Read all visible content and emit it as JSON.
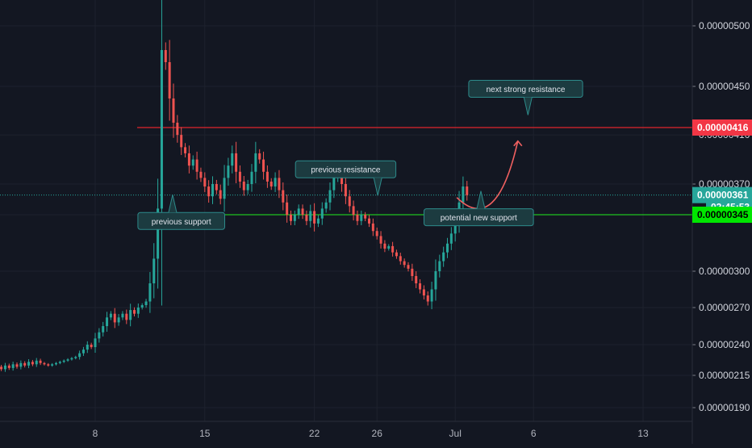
{
  "chart_data": {
    "type": "candlestick",
    "title": "",
    "xlabel": "",
    "ylabel": "",
    "x_ticks": [
      {
        "label": "8",
        "day": 8
      },
      {
        "label": "15",
        "day": 15
      },
      {
        "label": "22",
        "day": 22
      },
      {
        "label": "26",
        "day": 26
      },
      {
        "label": "Jul",
        "day": 31
      },
      {
        "label": "6",
        "day": 36
      },
      {
        "label": "13",
        "day": 43
      }
    ],
    "y_ticks": [
      "0.00000500",
      "0.00000450",
      "0.00000410",
      "0.00000370",
      "0.00000345",
      "0.00000300",
      "0.00000270",
      "0.00000240",
      "0.00000215",
      "0.00000190"
    ],
    "lines": [
      {
        "name": "next-strong-resistance",
        "price": 4.16e-06,
        "color": "#e0242c"
      },
      {
        "name": "support",
        "price": 3.45e-06,
        "color": "#1fc21f"
      },
      {
        "name": "current-price",
        "price": 3.61e-06,
        "color": "#26a69a"
      }
    ],
    "price_badges": [
      {
        "text": "0.00000416",
        "price": 4.16e-06,
        "color": "#f23645"
      },
      {
        "text": "0.00000361",
        "price": 3.61e-06,
        "color": "#26a69a"
      },
      {
        "text": "02:45:53",
        "price": 3.5e-06,
        "color": "#26a69a"
      },
      {
        "text": "0.00000345",
        "price": 3.45e-06,
        "color": "#00e600"
      }
    ],
    "annotations": [
      {
        "text": "previous support",
        "day": 13.5,
        "price": 3.4e-06
      },
      {
        "text": "previous resistance",
        "day": 24.0,
        "price": 3.82e-06
      },
      {
        "text": "potential new support",
        "day": 32.5,
        "price": 3.43e-06
      },
      {
        "text": "next strong resistance",
        "day": 35.5,
        "price": 4.48e-06
      }
    ],
    "projection": {
      "color": "#f06060",
      "points": [
        [
          31.1,
          3.59e-06
        ],
        [
          33.0,
          3.46e-06
        ],
        [
          35.0,
          4.05e-06
        ]
      ]
    },
    "series": [
      {
        "name": "candles",
        "x_start_day": 1.0,
        "x_step_day": 0.25,
        "close": [
          2.18e-06,
          2.2e-06,
          2.19e-06,
          2.22e-06,
          2.2e-06,
          2.23e-06,
          2.21e-06,
          2.24e-06,
          2.22e-06,
          2.25e-06,
          2.23e-06,
          2.26e-06,
          2.24e-06,
          2.27e-06,
          2.25e-06,
          2.24e-06,
          2.23e-06,
          2.24e-06,
          2.25e-06,
          2.26e-06,
          2.27e-06,
          2.28e-06,
          2.29e-06,
          2.3e-06,
          2.33e-06,
          2.36e-06,
          2.4e-06,
          2.38e-06,
          2.45e-06,
          2.5e-06,
          2.55e-06,
          2.62e-06,
          2.65e-06,
          2.58e-06,
          2.62e-06,
          2.65e-06,
          2.6e-06,
          2.68e-06,
          2.65e-06,
          2.7e-06,
          2.72e-06,
          2.75e-06,
          2.9e-06,
          3.1e-06,
          3.5e-06,
          4.8e-06,
          4.7e-06,
          4.4e-06,
          4.2e-06,
          4.1e-06,
          4e-06,
          3.95e-06,
          3.85e-06,
          3.9e-06,
          3.8e-06,
          3.75e-06,
          3.68e-06,
          3.6e-06,
          3.7e-06,
          3.65e-06,
          3.58e-06,
          3.75e-06,
          3.85e-06,
          3.95e-06,
          3.8e-06,
          3.72e-06,
          3.65e-06,
          3.7e-06,
          3.8e-06,
          3.95e-06,
          3.9e-06,
          3.8e-06,
          3.72e-06,
          3.68e-06,
          3.75e-06,
          3.65e-06,
          3.55e-06,
          3.45e-06,
          3.4e-06,
          3.45e-06,
          3.5e-06,
          3.45e-06,
          3.4e-06,
          3.48e-06,
          3.38e-06,
          3.42e-06,
          3.5e-06,
          3.55e-06,
          3.65e-06,
          3.75e-06,
          3.8e-06,
          3.7e-06,
          3.6e-06,
          3.52e-06,
          3.45e-06,
          3.4e-06,
          3.45e-06,
          3.42e-06,
          3.38e-06,
          3.32e-06,
          3.28e-06,
          3.22e-06,
          3.18e-06,
          3.2e-06,
          3.15e-06,
          3.12e-06,
          3.08e-06,
          3.05e-06,
          3.02e-06,
          2.96e-06,
          2.9e-06,
          2.85e-06,
          2.8e-06,
          2.75e-06,
          2.85e-06,
          3e-06,
          3.08e-06,
          3.15e-06,
          3.22e-06,
          3.3e-06,
          3.4e-06,
          3.55e-06,
          3.68e-06,
          3.61e-06
        ]
      }
    ]
  }
}
